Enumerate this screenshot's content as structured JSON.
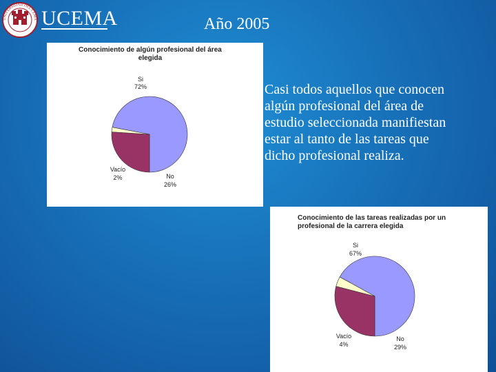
{
  "logo": {
    "brand": "UCEMA",
    "seal_text": "UNIVERSIDAD DEL CEMA"
  },
  "slide": {
    "title": "Año 2005",
    "body_lines": [
      "Casi todos aquellos que conocen",
      "algún profesional del área de",
      "estudio seleccionada manifiestan",
      "estar al tanto de las tareas que",
      "dicho profesional realiza."
    ]
  },
  "chart_data": [
    {
      "type": "pie",
      "title_lines": [
        "Conocimiento de algún profesional del área",
        "elegida"
      ],
      "slices": [
        {
          "label": "Si",
          "value": 72,
          "display": "72%",
          "color": "#9999ff"
        },
        {
          "label": "No",
          "value": 26,
          "display": "26%",
          "color": "#993366"
        },
        {
          "label": "Vacío",
          "value": 2,
          "display": "2%",
          "color": "#ffffcc"
        }
      ]
    },
    {
      "type": "pie",
      "title_lines": [
        "Conocimiento de las tareas realizadas por un",
        "profesional de la carrera elegida"
      ],
      "slices": [
        {
          "label": "Si",
          "value": 67,
          "display": "67%",
          "color": "#9999ff"
        },
        {
          "label": "No",
          "value": 29,
          "display": "29%",
          "color": "#993366"
        },
        {
          "label": "Vacío",
          "value": 4,
          "display": "4%",
          "color": "#ffffcc"
        }
      ]
    }
  ]
}
